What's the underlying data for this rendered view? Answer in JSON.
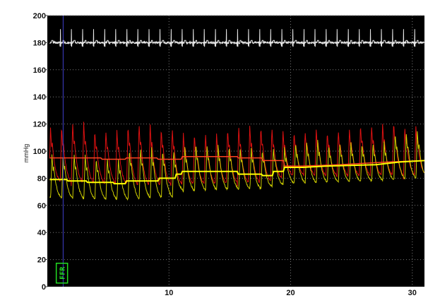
{
  "chart_data": {
    "type": "line",
    "xlabel": "",
    "ylabel": "mmHg",
    "xlim": [
      0,
      31
    ],
    "ylim": [
      0,
      200
    ],
    "yticks": [
      0,
      20,
      40,
      60,
      80,
      100,
      120,
      140,
      160,
      180,
      200
    ],
    "xticks": [
      10,
      20,
      30
    ],
    "grid": true,
    "background": "#000000",
    "colors": {
      "ecg": "#e8e8e8",
      "aortic": "#dd1111",
      "distal": "#cccc00",
      "mean_aortic": "#ff4422",
      "mean_distal": "#ffff00",
      "cursor": "#4040cc",
      "marker": "#22dd22",
      "grid": "#7a7a7a"
    },
    "annotations": [
      {
        "text": "FFR",
        "x": 1.2,
        "y": 10
      }
    ],
    "cursor_x": 1.3,
    "beat_period": 0.91,
    "series": [
      {
        "key": "ecg",
        "x": [
          0.2,
          31
        ],
        "y": [
          180,
          180
        ],
        "spike_height": 10
      },
      {
        "key": "aortic",
        "x": [
          0.2,
          6.4,
          7.0,
          10.5,
          11.0,
          17.6,
          18.5,
          20.0,
          25.0,
          31.0
        ],
        "systolic": [
          118,
          117,
          120,
          118,
          115,
          117,
          116,
          112,
          118,
          120
        ],
        "diastolic": [
          75,
          73,
          72,
          72,
          73,
          74,
          76,
          80,
          79,
          80
        ]
      },
      {
        "key": "distal",
        "x": [
          0.2,
          6.4,
          7.0,
          10.5,
          11.0,
          17.6,
          18.5,
          20.0,
          25.0,
          31.0
        ],
        "systolic": [
          98,
          96,
          100,
          100,
          103,
          100,
          101,
          102,
          108,
          112
        ],
        "diastolic": [
          63,
          62,
          62,
          64,
          68,
          70,
          72,
          74,
          75,
          78
        ]
      },
      {
        "key": "mean_aortic",
        "x": [
          0.2,
          4.4,
          4.5,
          6.4,
          6.5,
          9.0,
          9.1,
          11.0,
          11.1,
          15.6,
          15.7,
          17.6,
          17.7,
          19.4,
          19.5,
          21.0,
          24.0,
          26.0,
          28.0,
          31.0
        ],
        "y": [
          95,
          95,
          94,
          94,
          95,
          95,
          94,
          94,
          96,
          96,
          95,
          95,
          93,
          93,
          89,
          89,
          90,
          91,
          92,
          93
        ]
      },
      {
        "key": "mean_distal",
        "x": [
          0.2,
          1.6,
          1.7,
          3.2,
          3.3,
          5.4,
          5.5,
          6.4,
          6.5,
          9.1,
          9.2,
          10.5,
          10.6,
          11.0,
          11.1,
          15.6,
          15.7,
          17.6,
          17.7,
          18.5,
          18.6,
          19.4,
          19.5,
          21.0,
          23.0,
          27.0,
          28.0,
          29.0,
          31.0
        ],
        "y": [
          79,
          79,
          78,
          78,
          77,
          77,
          76,
          76,
          78,
          78,
          80,
          80,
          83,
          83,
          85,
          85,
          83,
          83,
          82,
          82,
          85,
          85,
          88,
          88,
          89,
          90,
          91,
          92,
          93
        ]
      }
    ]
  }
}
